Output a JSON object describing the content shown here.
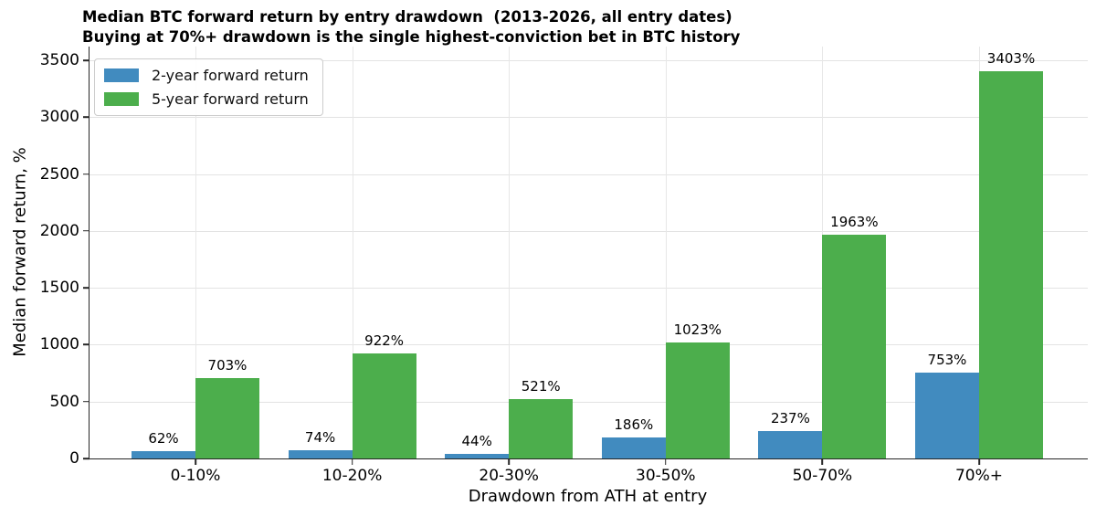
{
  "title": {
    "line1": "Median BTC forward return by entry drawdown  (2013-2026, all entry dates)",
    "line2": "Buying at 70%+ drawdown is the single highest-conviction bet in BTC history"
  },
  "chart_data": {
    "type": "bar",
    "categories": [
      "0-10%",
      "10-20%",
      "20-30%",
      "30-50%",
      "50-70%",
      "70%+"
    ],
    "series": [
      {
        "name": "2-year forward return",
        "color": "#418bbf",
        "values": [
          62,
          74,
          44,
          186,
          237,
          753
        ],
        "labels": [
          "62%",
          "74%",
          "44%",
          "186%",
          "237%",
          "753%"
        ]
      },
      {
        "name": "5-year forward return",
        "color": "#4cae4c",
        "values": [
          703,
          922,
          521,
          1023,
          1963,
          3403
        ],
        "labels": [
          "703%",
          "922%",
          "521%",
          "1023%",
          "1963%",
          "3403%"
        ]
      }
    ],
    "xlabel": "Drawdown from ATH at entry",
    "ylabel": "Median forward return, %",
    "ylim": [
      0,
      3620
    ],
    "yticks": [
      0,
      500,
      1000,
      1500,
      2000,
      2500,
      3000,
      3500
    ],
    "grid": true,
    "legend_position": "upper-left",
    "colors": {
      "grid": "#e3e3e3",
      "axis": "#262626",
      "text": "#000000"
    }
  }
}
